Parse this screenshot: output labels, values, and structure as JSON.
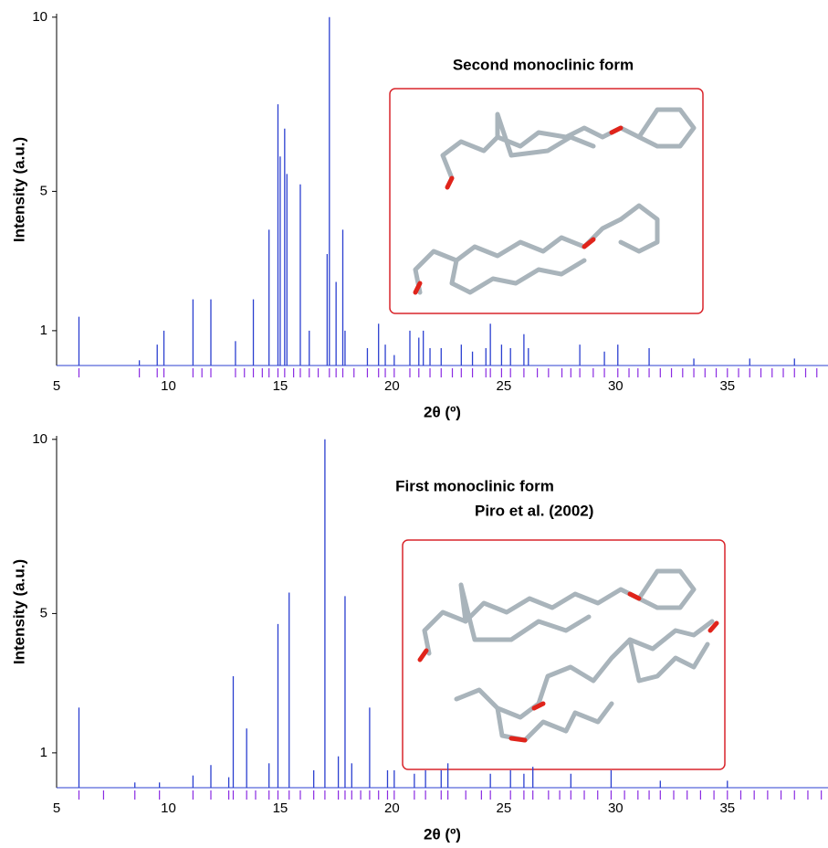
{
  "chart_data": [
    {
      "type": "stem",
      "xlabel": "2θ (º)",
      "ylabel": "Intensity (a.u.)",
      "annotation": [
        "Second monoclinic form"
      ],
      "color": "#2b3fd0",
      "reflection_color": "#8a2be2",
      "xlim": [
        5,
        39.5
      ],
      "ylim": [
        0,
        10.1
      ],
      "xticks": [
        5,
        10,
        15,
        20,
        25,
        30,
        35
      ],
      "yticks": [
        1,
        5,
        10
      ],
      "x": [
        6.0,
        8.7,
        9.5,
        9.8,
        11.1,
        11.9,
        13.0,
        13.8,
        14.5,
        14.9,
        15.0,
        15.2,
        15.3,
        15.9,
        16.3,
        17.1,
        17.2,
        17.5,
        17.8,
        17.9,
        18.9,
        19.4,
        19.7,
        20.1,
        20.8,
        21.2,
        21.4,
        21.7,
        22.2,
        23.1,
        23.6,
        24.2,
        24.4,
        24.9,
        25.3,
        25.9,
        26.1,
        28.4,
        29.5,
        30.1,
        31.5,
        33.5,
        36.0,
        38.0
      ],
      "values": [
        1.4,
        0.15,
        0.6,
        1.0,
        1.9,
        1.9,
        0.7,
        1.9,
        3.9,
        7.5,
        6.0,
        6.8,
        5.5,
        5.2,
        1.0,
        3.2,
        10,
        2.4,
        3.9,
        1.0,
        0.5,
        1.2,
        0.6,
        0.3,
        1.0,
        0.8,
        1.0,
        0.5,
        0.5,
        0.6,
        0.4,
        0.5,
        1.2,
        0.6,
        0.5,
        0.9,
        0.5,
        0.6,
        0.4,
        0.6,
        0.5,
        0.2,
        0.2,
        0.2
      ],
      "reflections": [
        6.0,
        8.7,
        9.5,
        9.8,
        11.1,
        11.5,
        11.9,
        13.0,
        13.4,
        13.8,
        14.2,
        14.5,
        14.9,
        15.2,
        15.6,
        15.9,
        16.3,
        16.7,
        17.2,
        17.5,
        17.8,
        18.3,
        18.9,
        19.4,
        19.7,
        20.1,
        20.8,
        21.2,
        21.7,
        22.2,
        22.7,
        23.1,
        23.6,
        24.2,
        24.4,
        24.9,
        25.3,
        25.9,
        26.5,
        27.0,
        27.6,
        28.0,
        28.4,
        29.0,
        29.5,
        30.1,
        30.6,
        31.0,
        31.5,
        32.0,
        32.5,
        33.0,
        33.5,
        34.0,
        34.5,
        35.0,
        35.5,
        36.0,
        36.5,
        37.0,
        37.5,
        38.0,
        38.5,
        39.0
      ]
    },
    {
      "type": "stem",
      "xlabel": "2θ (º)",
      "ylabel": "Intensity (a.u.)",
      "annotation": [
        "First monoclinic form",
        "Piro et al. (2002)"
      ],
      "color": "#2b3fd0",
      "reflection_color": "#8a2be2",
      "xlim": [
        5,
        39.5
      ],
      "ylim": [
        0,
        10.1
      ],
      "xticks": [
        5,
        10,
        15,
        20,
        25,
        30,
        35
      ],
      "yticks": [
        1,
        5,
        10
      ],
      "x": [
        6.0,
        8.5,
        9.6,
        11.1,
        11.9,
        12.7,
        12.9,
        13.5,
        14.5,
        14.9,
        15.4,
        16.5,
        17.0,
        17.6,
        17.9,
        18.2,
        19.0,
        19.8,
        20.1,
        21.0,
        21.5,
        22.2,
        22.5,
        24.4,
        25.3,
        25.9,
        26.3,
        28.0,
        29.8,
        32.0,
        35.0
      ],
      "values": [
        2.3,
        0.15,
        0.15,
        0.35,
        0.65,
        0.3,
        3.2,
        1.7,
        0.7,
        4.7,
        5.6,
        0.5,
        10,
        0.9,
        5.5,
        0.7,
        2.3,
        0.5,
        0.5,
        0.4,
        0.5,
        0.5,
        0.7,
        0.4,
        0.5,
        0.4,
        0.6,
        0.4,
        0.5,
        0.2,
        0.2
      ],
      "reflections": [
        6.0,
        7.1,
        8.5,
        9.6,
        11.1,
        11.9,
        12.7,
        12.9,
        13.5,
        13.9,
        14.5,
        14.9,
        15.4,
        15.9,
        16.5,
        17.0,
        17.6,
        17.9,
        18.2,
        18.6,
        19.0,
        19.4,
        19.8,
        20.1,
        21.0,
        21.5,
        22.2,
        22.5,
        23.3,
        24.0,
        24.4,
        25.3,
        25.9,
        26.3,
        27.0,
        27.5,
        28.0,
        28.6,
        29.2,
        29.8,
        30.4,
        31.0,
        31.5,
        32.0,
        32.6,
        33.2,
        33.8,
        34.4,
        35.0,
        35.6,
        36.2,
        36.8,
        37.4,
        38.0,
        38.6,
        39.2
      ]
    }
  ]
}
